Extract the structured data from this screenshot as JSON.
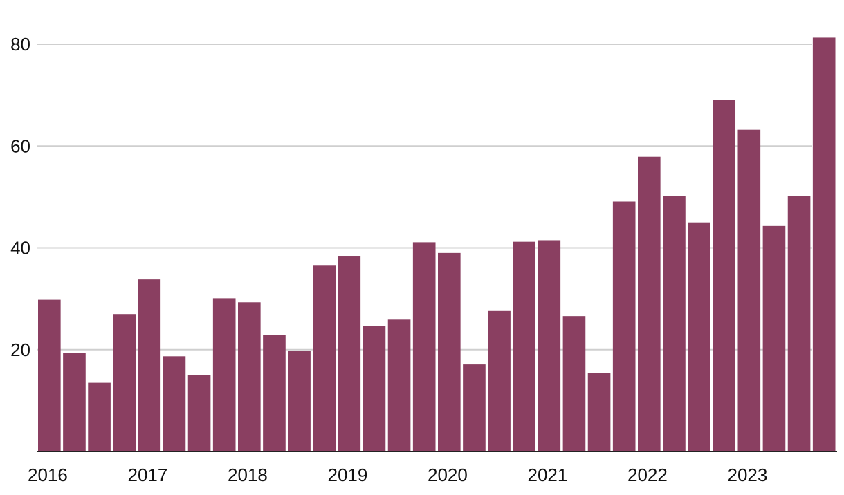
{
  "chart_data": {
    "type": "bar",
    "title": "",
    "xlabel": "",
    "ylabel": "",
    "ylim": [
      0,
      81.5
    ],
    "y_ticks": [
      20,
      40,
      60,
      80
    ],
    "grid": true,
    "colors": {
      "bar": "#8a3f61",
      "grid": "#cfcfcf",
      "axis": "#222222",
      "text": "#111111"
    },
    "x_tick_labels": [
      "2016",
      "2017",
      "2018",
      "2019",
      "2020",
      "2021",
      "2022",
      "2023"
    ],
    "quarters_per_year": 4,
    "categories": [
      "2016 Q1",
      "2016 Q2",
      "2016 Q3",
      "2016 Q4",
      "2017 Q1",
      "2017 Q2",
      "2017 Q3",
      "2017 Q4",
      "2018 Q1",
      "2018 Q2",
      "2018 Q3",
      "2018 Q4",
      "2019 Q1",
      "2019 Q2",
      "2019 Q3",
      "2019 Q4",
      "2020 Q1",
      "2020 Q2",
      "2020 Q3",
      "2020 Q4",
      "2021 Q1",
      "2021 Q2",
      "2021 Q3",
      "2021 Q4",
      "2022 Q1",
      "2022 Q2",
      "2022 Q3",
      "2022 Q4",
      "2023 Q1",
      "2023 Q2",
      "2023 Q3",
      "2023 Q4"
    ],
    "values": [
      29.8,
      19.3,
      13.5,
      27.0,
      33.8,
      18.7,
      15.0,
      30.1,
      29.3,
      22.9,
      19.8,
      36.5,
      38.3,
      24.6,
      25.9,
      41.1,
      39.0,
      17.1,
      27.6,
      41.2,
      41.5,
      26.6,
      15.4,
      49.1,
      57.9,
      50.2,
      45.0,
      69.0,
      63.2,
      44.3,
      50.2,
      81.3
    ]
  }
}
